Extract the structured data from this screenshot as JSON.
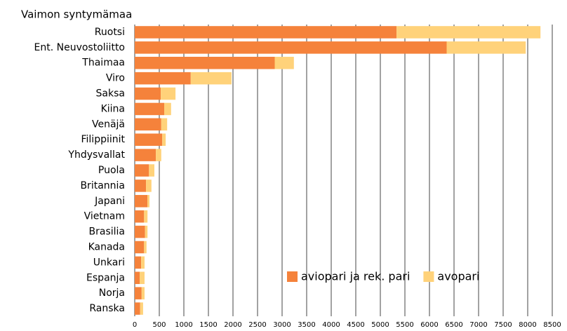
{
  "chart_data": {
    "type": "stacked-barh",
    "title": "Vaimon syntymämaa",
    "categories": [
      "Ruotsi",
      "Ent. Neuvostoliitto",
      "Thaimaa",
      "Viro",
      "Saksa",
      "Kiina",
      "Venäjä",
      "Filippiinit",
      "Yhdysvallat",
      "Puola",
      "Britannia",
      "Japani",
      "Vietnam",
      "Brasilia",
      "Kanada",
      "Unkari",
      "Espanja",
      "Norja",
      "Ranska"
    ],
    "series": [
      {
        "name": "aviopari ja rek. pari",
        "color": "#f5823b",
        "values": [
          5330,
          6350,
          2850,
          1140,
          530,
          600,
          540,
          560,
          430,
          290,
          230,
          260,
          190,
          210,
          190,
          130,
          100,
          140,
          110
        ]
      },
      {
        "name": "avopari",
        "color": "#ffd27a",
        "values": [
          2930,
          1610,
          390,
          830,
          300,
          140,
          120,
          70,
          110,
          110,
          110,
          40,
          70,
          50,
          50,
          70,
          100,
          60,
          60
        ]
      }
    ],
    "xlim": [
      0,
      8500
    ],
    "xticks": [
      0,
      500,
      1000,
      1500,
      2000,
      2500,
      3000,
      3500,
      4000,
      4500,
      5000,
      5500,
      6000,
      6500,
      7000,
      7500,
      8000,
      8500
    ],
    "grid": true,
    "legend": "lower right"
  }
}
